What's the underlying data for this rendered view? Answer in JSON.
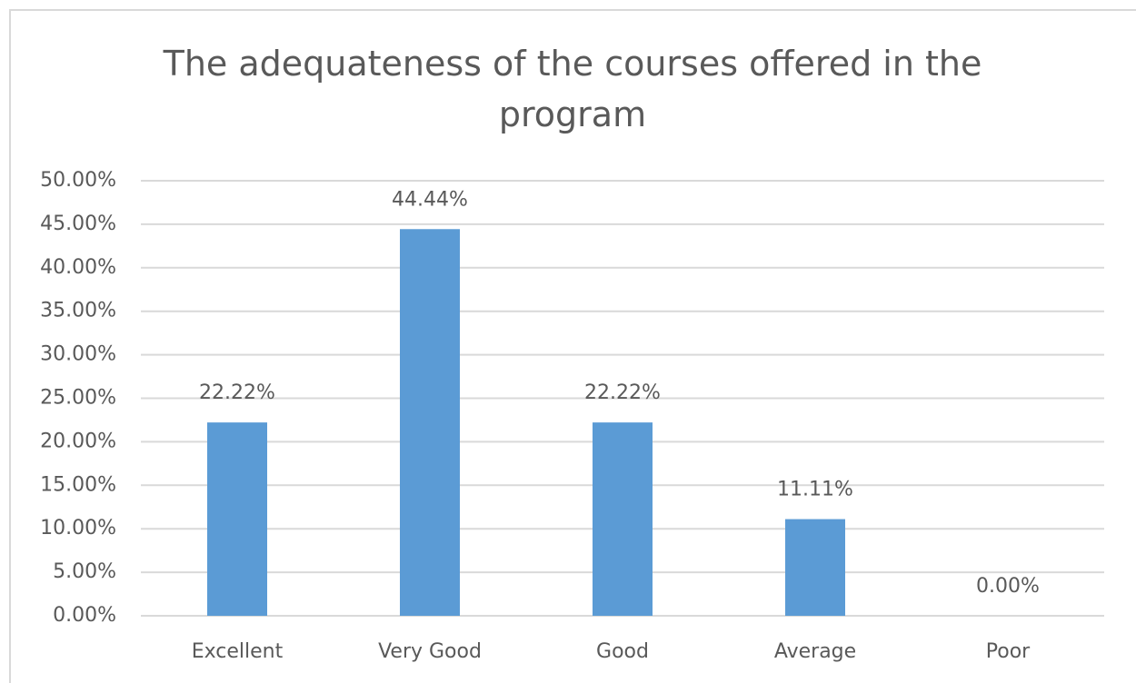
{
  "chart_data": {
    "type": "bar",
    "title": "The adequateness of the courses offered in the program",
    "categories": [
      "Excellent",
      "Very Good",
      "Good",
      "Average",
      "Poor"
    ],
    "values": [
      22.22,
      44.44,
      22.22,
      11.11,
      0
    ],
    "value_labels": [
      "22.22%",
      "44.44%",
      "22.22%",
      "11.11%",
      "0.00%"
    ],
    "color": "#5b9bd5",
    "ylim": [
      0,
      50
    ],
    "yticks": [
      {
        "value": 0,
        "label": "0.00%"
      },
      {
        "value": 5,
        "label": "5.00%"
      },
      {
        "value": 10,
        "label": "10.00%"
      },
      {
        "value": 15,
        "label": "15.00%"
      },
      {
        "value": 20,
        "label": "20.00%"
      },
      {
        "value": 25,
        "label": "25.00%"
      },
      {
        "value": 30,
        "label": "30.00%"
      },
      {
        "value": 35,
        "label": "35.00%"
      },
      {
        "value": 40,
        "label": "40.00%"
      },
      {
        "value": 45,
        "label": "45.00%"
      },
      {
        "value": 50,
        "label": "50.00%"
      }
    ],
    "grid": true
  }
}
